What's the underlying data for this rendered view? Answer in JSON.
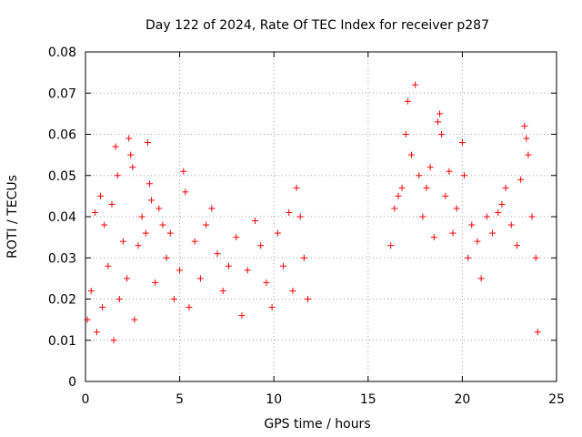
{
  "chart_data": {
    "type": "scatter",
    "title": "Day 122 of 2024, Rate Of TEC Index for receiver p287",
    "xlabel": "GPS time / hours",
    "ylabel": "ROTI / TECUs",
    "xlim": [
      0,
      25
    ],
    "ylim": [
      0,
      0.08
    ],
    "xticks": [
      0,
      5,
      10,
      15,
      20,
      25
    ],
    "xtick_labels": [
      "0",
      "5",
      "10",
      "15",
      "20",
      "25"
    ],
    "yticks": [
      0,
      0.01,
      0.02,
      0.03,
      0.04,
      0.05,
      0.06,
      0.07,
      0.08
    ],
    "ytick_labels": [
      "0",
      "0.01",
      "0.02",
      "0.03",
      "0.04",
      "0.05",
      "0.06",
      "0.07",
      "0.08"
    ],
    "grid": true,
    "marker": "+",
    "color": "#ff0000",
    "series": [
      {
        "name": "ROTI",
        "points": [
          [
            0.1,
            0.015
          ],
          [
            0.3,
            0.022
          ],
          [
            0.5,
            0.041
          ],
          [
            0.6,
            0.012
          ],
          [
            0.8,
            0.045
          ],
          [
            0.9,
            0.018
          ],
          [
            1.0,
            0.038
          ],
          [
            1.2,
            0.028
          ],
          [
            1.4,
            0.043
          ],
          [
            1.5,
            0.01
          ],
          [
            1.6,
            0.057
          ],
          [
            1.7,
            0.05
          ],
          [
            1.8,
            0.02
          ],
          [
            2.0,
            0.034
          ],
          [
            2.2,
            0.025
          ],
          [
            2.3,
            0.059
          ],
          [
            2.4,
            0.055
          ],
          [
            2.5,
            0.052
          ],
          [
            2.6,
            0.015
          ],
          [
            2.8,
            0.033
          ],
          [
            3.0,
            0.04
          ],
          [
            3.2,
            0.036
          ],
          [
            3.3,
            0.058
          ],
          [
            3.4,
            0.048
          ],
          [
            3.5,
            0.044
          ],
          [
            3.7,
            0.024
          ],
          [
            3.9,
            0.042
          ],
          [
            4.1,
            0.038
          ],
          [
            4.3,
            0.03
          ],
          [
            4.5,
            0.036
          ],
          [
            4.7,
            0.02
          ],
          [
            5.0,
            0.027
          ],
          [
            5.2,
            0.051
          ],
          [
            5.3,
            0.046
          ],
          [
            5.5,
            0.018
          ],
          [
            5.8,
            0.034
          ],
          [
            6.1,
            0.025
          ],
          [
            6.4,
            0.038
          ],
          [
            6.7,
            0.042
          ],
          [
            7.0,
            0.031
          ],
          [
            7.3,
            0.022
          ],
          [
            7.6,
            0.028
          ],
          [
            8.0,
            0.035
          ],
          [
            8.3,
            0.016
          ],
          [
            8.6,
            0.027
          ],
          [
            9.0,
            0.039
          ],
          [
            9.3,
            0.033
          ],
          [
            9.6,
            0.024
          ],
          [
            9.9,
            0.018
          ],
          [
            10.2,
            0.036
          ],
          [
            10.5,
            0.028
          ],
          [
            10.8,
            0.041
          ],
          [
            11.0,
            0.022
          ],
          [
            11.2,
            0.047
          ],
          [
            11.4,
            0.04
          ],
          [
            11.6,
            0.03
          ],
          [
            11.8,
            0.02
          ],
          [
            16.2,
            0.033
          ],
          [
            16.4,
            0.042
          ],
          [
            16.6,
            0.045
          ],
          [
            16.8,
            0.047
          ],
          [
            17.0,
            0.06
          ],
          [
            17.1,
            0.068
          ],
          [
            17.3,
            0.055
          ],
          [
            17.5,
            0.072
          ],
          [
            17.7,
            0.05
          ],
          [
            17.9,
            0.04
          ],
          [
            18.1,
            0.047
          ],
          [
            18.3,
            0.052
          ],
          [
            18.5,
            0.035
          ],
          [
            18.7,
            0.063
          ],
          [
            18.8,
            0.065
          ],
          [
            18.9,
            0.06
          ],
          [
            19.1,
            0.045
          ],
          [
            19.3,
            0.051
          ],
          [
            19.5,
            0.036
          ],
          [
            19.7,
            0.042
          ],
          [
            20.0,
            0.058
          ],
          [
            20.1,
            0.05
          ],
          [
            20.3,
            0.03
          ],
          [
            20.5,
            0.038
          ],
          [
            20.8,
            0.034
          ],
          [
            21.0,
            0.025
          ],
          [
            21.3,
            0.04
          ],
          [
            21.6,
            0.036
          ],
          [
            21.9,
            0.041
          ],
          [
            22.1,
            0.043
          ],
          [
            22.3,
            0.047
          ],
          [
            22.6,
            0.038
          ],
          [
            22.9,
            0.033
          ],
          [
            23.1,
            0.049
          ],
          [
            23.3,
            0.062
          ],
          [
            23.4,
            0.059
          ],
          [
            23.5,
            0.055
          ],
          [
            23.7,
            0.04
          ],
          [
            23.9,
            0.03
          ],
          [
            24.0,
            0.012
          ]
        ]
      }
    ]
  }
}
